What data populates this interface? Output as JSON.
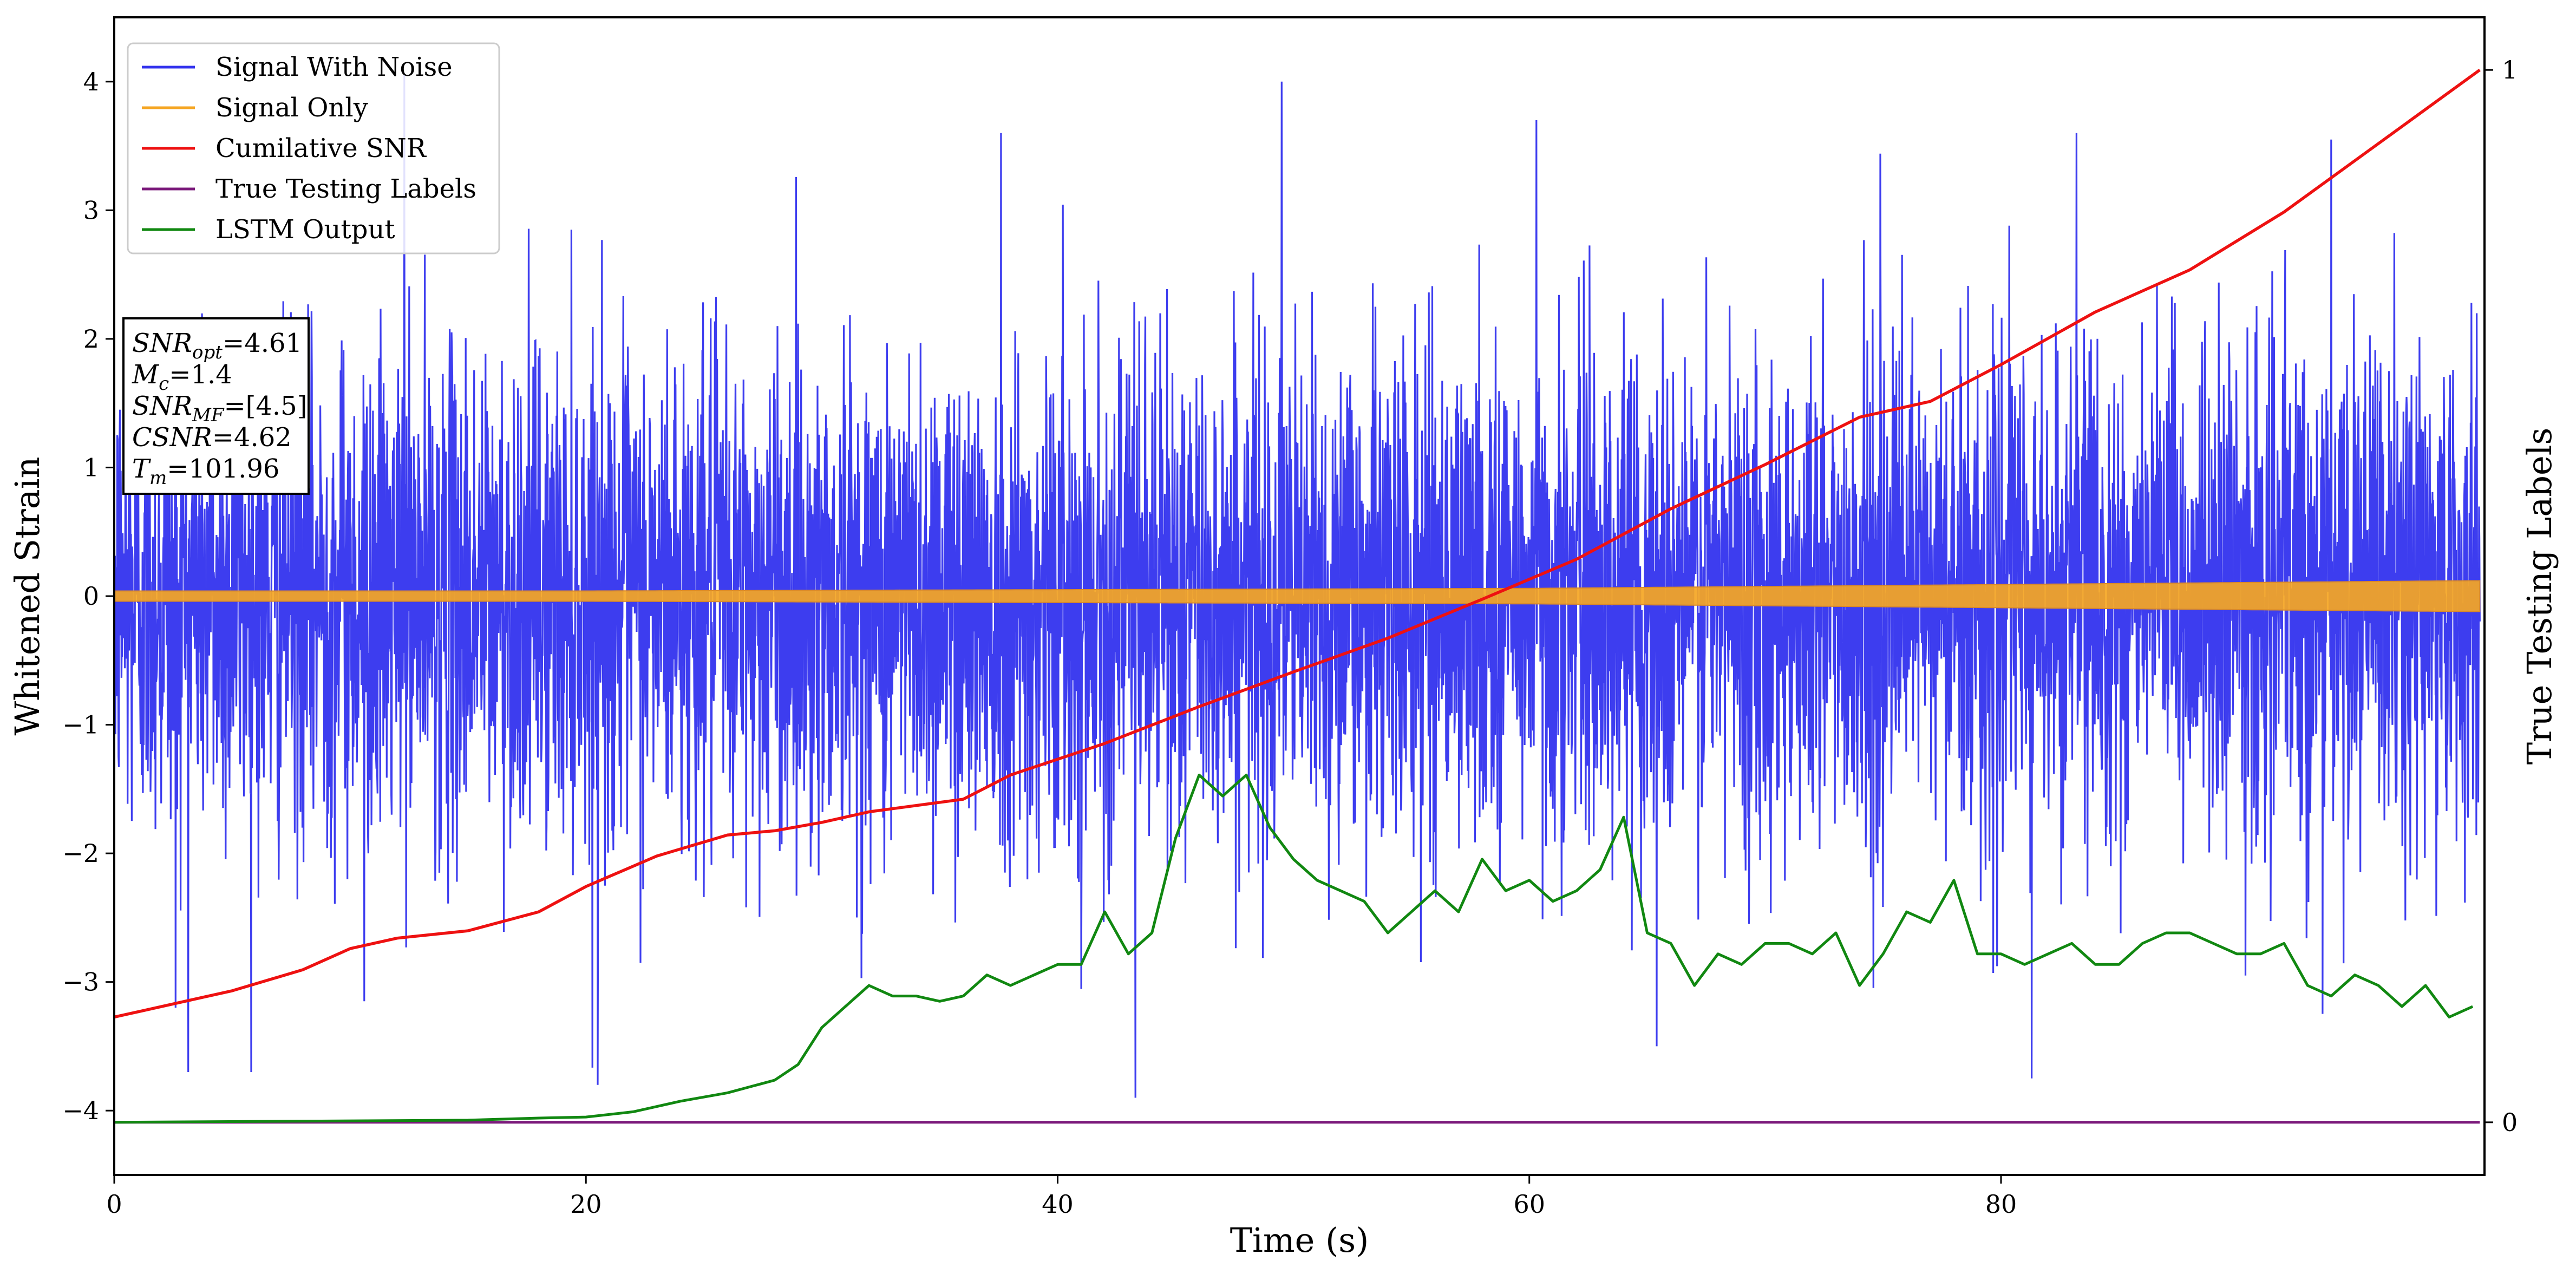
{
  "chart_data": {
    "type": "line",
    "xlabel": "Time (s)",
    "ylabel": "Whitened Strain",
    "y2label": "True Testing Labels",
    "xlim": [
      0,
      100.5
    ],
    "ylim": [
      -4.5,
      4.5
    ],
    "y2lim": [
      -0.05,
      1.05
    ],
    "xticks": [
      0,
      20,
      40,
      60,
      80
    ],
    "yticks": [
      -4,
      -3,
      -2,
      -1,
      0,
      1,
      2,
      3,
      4
    ],
    "y2ticks": [
      0,
      1
    ],
    "legend_position": "top-left",
    "series": [
      {
        "name": "Signal With Noise",
        "color": "#3333ee",
        "axis": "left",
        "description_values": {
          "mean": 0.0,
          "typical_range": [
            -2.5,
            2.5
          ],
          "peak_max": 4.0,
          "peak_min": -3.9
        },
        "spikes": [
          [
            12.3,
            4.05
          ],
          [
            49.5,
            4.0
          ],
          [
            37.6,
            3.6
          ],
          [
            60.3,
            3.7
          ],
          [
            83.2,
            3.6
          ],
          [
            43.3,
            -3.9
          ],
          [
            20.5,
            -3.8
          ],
          [
            81.3,
            -3.75
          ],
          [
            2.6,
            -3.2
          ],
          [
            10.6,
            -3.15
          ],
          [
            65.4,
            -3.5
          ],
          [
            94.0,
            3.55
          ]
        ]
      },
      {
        "name": "Signal Only",
        "color": "#f5a623",
        "axis": "left",
        "envelope": [
          [
            0,
            0.04
          ],
          [
            20,
            0.04
          ],
          [
            40,
            0.05
          ],
          [
            60,
            0.06
          ],
          [
            80,
            0.09
          ],
          [
            100,
            0.12
          ]
        ]
      },
      {
        "name": "Cumilative SNR",
        "color": "#ee1111",
        "axis": "right",
        "x": [
          0,
          5,
          8,
          10,
          12,
          15,
          18,
          20,
          23,
          26,
          28,
          30,
          32,
          36,
          38,
          42,
          46,
          50,
          54,
          58,
          62,
          66,
          70,
          74,
          77,
          80,
          84,
          88,
          92,
          96,
          100.3
        ],
        "values": [
          0.1,
          0.125,
          0.145,
          0.165,
          0.175,
          0.182,
          0.2,
          0.224,
          0.253,
          0.273,
          0.277,
          0.285,
          0.295,
          0.307,
          0.33,
          0.36,
          0.395,
          0.428,
          0.46,
          0.497,
          0.535,
          0.583,
          0.625,
          0.67,
          0.685,
          0.72,
          0.77,
          0.81,
          0.865,
          0.93,
          1.0
        ]
      },
      {
        "name": "True Testing Labels",
        "color": "#7b1a7b",
        "axis": "right",
        "x": [
          0,
          100.3
        ],
        "values": [
          0,
          0
        ]
      },
      {
        "name": "LSTM Output",
        "color": "#118811",
        "axis": "right",
        "x": [
          0,
          15,
          18,
          20,
          22,
          24,
          26,
          28,
          29,
          30,
          31,
          32,
          33,
          34,
          35,
          36,
          37,
          38,
          39,
          40,
          41,
          42,
          43,
          44,
          45,
          46,
          47,
          48,
          49,
          50,
          51,
          52,
          53,
          54,
          55,
          56,
          57,
          58,
          59,
          60,
          61,
          62,
          63,
          64,
          65,
          66,
          67,
          68,
          69,
          70,
          71,
          72,
          73,
          74,
          75,
          76,
          77,
          78,
          79,
          80,
          81,
          82,
          83,
          84,
          85,
          86,
          87,
          88,
          89,
          90,
          91,
          92,
          93,
          94,
          95,
          96,
          97,
          98,
          99,
          100
        ],
        "values": [
          0.0,
          0.002,
          0.004,
          0.005,
          0.01,
          0.02,
          0.028,
          0.04,
          0.055,
          0.09,
          0.11,
          0.13,
          0.12,
          0.12,
          0.115,
          0.12,
          0.14,
          0.13,
          0.14,
          0.15,
          0.15,
          0.2,
          0.16,
          0.18,
          0.27,
          0.33,
          0.31,
          0.33,
          0.28,
          0.25,
          0.23,
          0.22,
          0.21,
          0.18,
          0.2,
          0.22,
          0.2,
          0.25,
          0.22,
          0.23,
          0.21,
          0.22,
          0.24,
          0.29,
          0.18,
          0.17,
          0.13,
          0.16,
          0.15,
          0.17,
          0.17,
          0.16,
          0.18,
          0.13,
          0.16,
          0.2,
          0.19,
          0.23,
          0.16,
          0.16,
          0.15,
          0.16,
          0.17,
          0.15,
          0.15,
          0.17,
          0.18,
          0.18,
          0.17,
          0.16,
          0.16,
          0.17,
          0.13,
          0.12,
          0.14,
          0.13,
          0.11,
          0.13,
          0.1,
          0.11
        ]
      }
    ],
    "info_box": {
      "lines": [
        {
          "var": "SNR",
          "sub": "opt",
          "value": "=4.61"
        },
        {
          "var": "M",
          "sub": "c",
          "value": "=1.4"
        },
        {
          "var": "SNR",
          "sub": "MF",
          "value": "=[4.5]"
        },
        {
          "var": "CSNR",
          "sub": "",
          "value": "=4.62"
        },
        {
          "var": "T",
          "sub": "m",
          "value": "=101.96"
        }
      ]
    }
  }
}
